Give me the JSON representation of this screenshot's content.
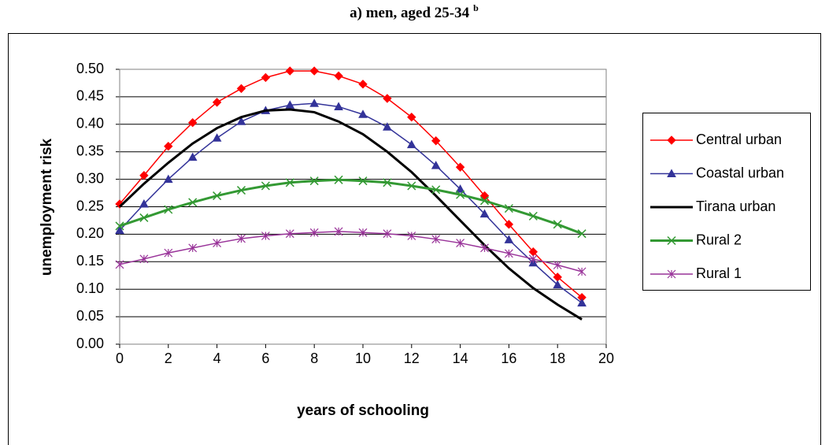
{
  "chart_data": {
    "type": "line",
    "title": "a) men, aged 25-34",
    "title_superscript": "b",
    "x_label": "years of schooling",
    "y_label": "unemployment risk",
    "x": [
      0,
      1,
      2,
      3,
      4,
      5,
      6,
      7,
      8,
      9,
      10,
      11,
      12,
      13,
      14,
      15,
      16,
      17,
      18,
      19
    ],
    "xlim": [
      0,
      20
    ],
    "xticks": [
      0,
      2,
      4,
      6,
      8,
      10,
      12,
      14,
      16,
      18,
      20
    ],
    "ylim": [
      0,
      0.5
    ],
    "yticks": [
      {
        "value": 0,
        "label": "0.00"
      },
      0.05,
      {
        "value": 0.1,
        "label": "0.10"
      },
      0.15,
      {
        "value": 0.2,
        "label": "0.20"
      },
      0.25,
      {
        "value": 0.3,
        "label": "0.30"
      },
      0.35,
      {
        "value": 0.4,
        "label": "0.40"
      },
      0.45,
      {
        "value": 0.5,
        "label": "0.50"
      }
    ],
    "grid": true,
    "legend": "right",
    "series": [
      {
        "name": "Central urban",
        "color": "#ff0000",
        "marker": "diamond",
        "line_width": 1.5,
        "values": [
          0.255,
          0.307,
          0.36,
          0.403,
          0.44,
          0.465,
          0.485,
          0.497,
          0.497,
          0.488,
          0.473,
          0.447,
          0.413,
          0.37,
          0.322,
          0.27,
          0.218,
          0.168,
          0.122,
          0.085
        ]
      },
      {
        "name": "Coastal urban",
        "color": "#333399",
        "marker": "triangle",
        "line_width": 1.5,
        "values": [
          0.207,
          0.255,
          0.3,
          0.34,
          0.375,
          0.405,
          0.425,
          0.435,
          0.438,
          0.432,
          0.418,
          0.395,
          0.363,
          0.325,
          0.282,
          0.237,
          0.19,
          0.148,
          0.108,
          0.075
        ]
      },
      {
        "name": "Tirana urban",
        "color": "#000000",
        "marker": "none",
        "line_width": 3,
        "values": [
          0.25,
          0.292,
          0.33,
          0.365,
          0.393,
          0.413,
          0.425,
          0.427,
          0.422,
          0.405,
          0.382,
          0.35,
          0.313,
          0.27,
          0.225,
          0.18,
          0.138,
          0.102,
          0.072,
          0.045
        ]
      },
      {
        "name": "Rural 2",
        "color": "#339933",
        "marker": "x",
        "line_width": 3,
        "values": [
          0.215,
          0.23,
          0.245,
          0.258,
          0.27,
          0.28,
          0.288,
          0.294,
          0.297,
          0.299,
          0.297,
          0.294,
          0.288,
          0.281,
          0.272,
          0.261,
          0.247,
          0.233,
          0.218,
          0.201
        ]
      },
      {
        "name": "Rural 1",
        "color": "#993399",
        "marker": "star",
        "line_width": 1.5,
        "values": [
          0.145,
          0.155,
          0.166,
          0.175,
          0.184,
          0.192,
          0.197,
          0.201,
          0.203,
          0.205,
          0.203,
          0.201,
          0.197,
          0.191,
          0.184,
          0.175,
          0.165,
          0.155,
          0.144,
          0.132
        ]
      }
    ]
  }
}
